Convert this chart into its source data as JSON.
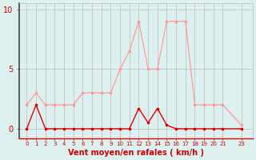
{
  "x": [
    0,
    1,
    2,
    3,
    4,
    5,
    6,
    7,
    8,
    9,
    10,
    11,
    12,
    13,
    14,
    15,
    16,
    17,
    18,
    19,
    20,
    21,
    23
  ],
  "wind_rafales": [
    2.0,
    3.0,
    2.0,
    2.0,
    2.0,
    2.0,
    3.0,
    3.0,
    3.0,
    3.0,
    5.0,
    6.5,
    9.0,
    5.0,
    5.0,
    9.0,
    9.0,
    9.0,
    2.0,
    2.0,
    2.0,
    2.0,
    0.3
  ],
  "wind_moyen": [
    0.0,
    2.0,
    0.0,
    0.0,
    0.0,
    0.0,
    0.0,
    0.0,
    0.0,
    0.0,
    0.0,
    0.0,
    1.7,
    0.5,
    1.7,
    0.3,
    0.0,
    0.0,
    0.0,
    0.0,
    0.0,
    0.0,
    0.0
  ],
  "xlabel": "Vent moyen/en rafales ( km/h )",
  "yticks": [
    0,
    5,
    10
  ],
  "xtick_labels": [
    "0",
    "1",
    "2",
    "3",
    "4",
    "5",
    "6",
    "7",
    "8",
    "9",
    "10",
    "11",
    "12",
    "13",
    "14",
    "15",
    "16",
    "17",
    "18",
    "19",
    "20",
    "21",
    "23"
  ],
  "bg_color": "#ddf0f0",
  "line_color_rafales": "#ff9999",
  "line_color_moyen": "#dd0000",
  "grid_color": "#bbbbbb",
  "xlabel_color": "#cc0000",
  "text_color": "#cc0000",
  "figsize": [
    3.2,
    2.0
  ],
  "dpi": 100,
  "ylim": [
    -0.8,
    10.5
  ],
  "xlim": [
    -0.8,
    24.2
  ]
}
